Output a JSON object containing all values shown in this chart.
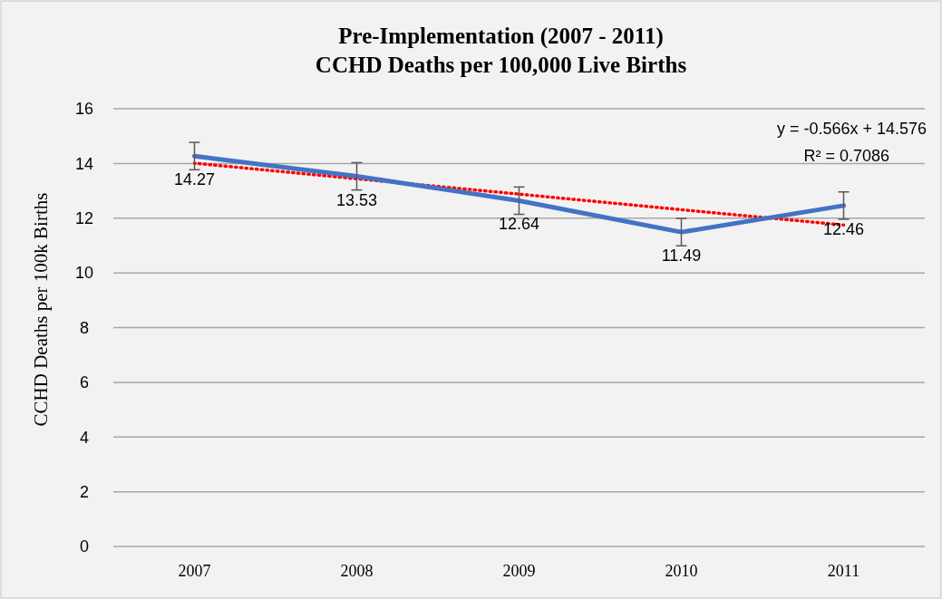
{
  "chart_data": {
    "type": "line",
    "title": "Pre-Implementation (2007 - 2011)\nCCHD Deaths per 100,000 Live Births",
    "ylabel": "CCHD Deaths per 100k Births",
    "categories": [
      "2007",
      "2008",
      "2009",
      "2010",
      "2011"
    ],
    "series": [
      {
        "color": "#4472c4",
        "values": [
          14.27,
          13.53,
          12.64,
          11.49,
          12.46
        ],
        "errors": [
          0.5,
          0.5,
          0.5,
          0.5,
          0.5
        ],
        "data_labels": true
      },
      {
        "type": "line",
        "color": "#ff0000",
        "line_style": "dotted",
        "values": [
          14.01,
          13.44,
          12.88,
          12.31,
          11.75
        ]
      }
    ],
    "annotations": [
      "y = -0.566x + 14.576\nR² = 0.7086"
    ],
    "ylim": [
      0,
      16
    ],
    "yticks": [
      0,
      2,
      4,
      6,
      8,
      10,
      12,
      14,
      16
    ],
    "grid": "y",
    "marker": "none"
  }
}
